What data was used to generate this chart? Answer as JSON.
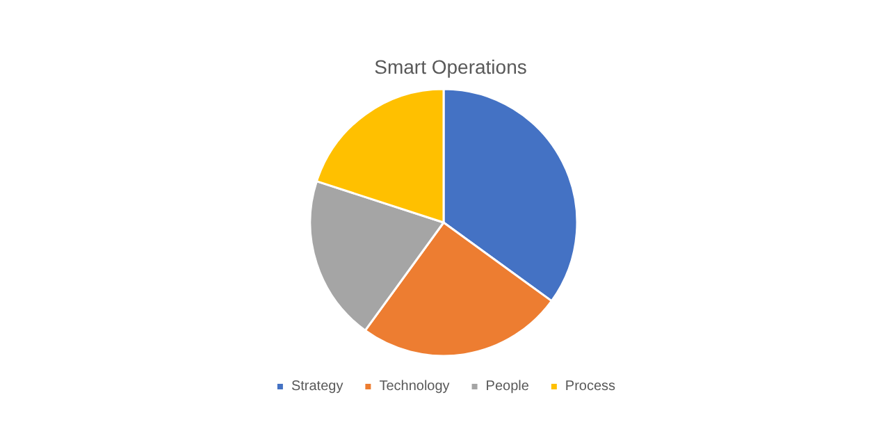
{
  "chart_data": {
    "type": "pie",
    "title": "Smart Operations",
    "categories": [
      "Strategy",
      "Technology",
      "People",
      "Process"
    ],
    "values": [
      35,
      25,
      20,
      20
    ],
    "colors": [
      "#4472c4",
      "#ed7d31",
      "#a5a5a5",
      "#ffc000"
    ],
    "legend": "bottom"
  }
}
